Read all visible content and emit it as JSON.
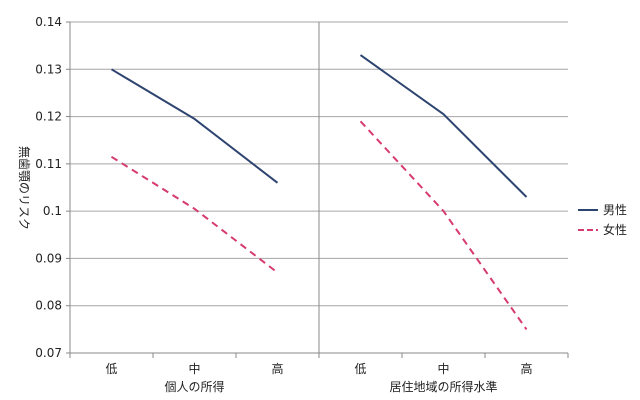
{
  "chart_data": {
    "type": "line",
    "ylabel": "無歯顎のリスク",
    "ylim": [
      0.07,
      0.14
    ],
    "yticks": [
      "0.07",
      "0.08",
      "0.09",
      "0.1",
      "0.11",
      "0.12",
      "0.13",
      "0.14"
    ],
    "grid": true,
    "legend_position": "right",
    "legend": [
      {
        "name": "男性",
        "color": "#2e4470",
        "dash": "solid"
      },
      {
        "name": "女性",
        "color": "#d63a6e",
        "dash": "dashed"
      }
    ],
    "panels": [
      {
        "xlabel": "個人の所得",
        "categories": [
          "低",
          "中",
          "高"
        ],
        "series": [
          {
            "name": "男性",
            "values": [
              0.13,
              0.1195,
              0.106
            ]
          },
          {
            "name": "女性",
            "values": [
              0.1115,
              0.1005,
              0.087
            ]
          }
        ]
      },
      {
        "xlabel": "居住地域の所得水準",
        "categories": [
          "低",
          "中",
          "高"
        ],
        "series": [
          {
            "name": "男性",
            "values": [
              0.133,
              0.1205,
              0.103
            ]
          },
          {
            "name": "女性",
            "values": [
              0.119,
              0.1,
              0.075
            ]
          }
        ]
      }
    ]
  }
}
